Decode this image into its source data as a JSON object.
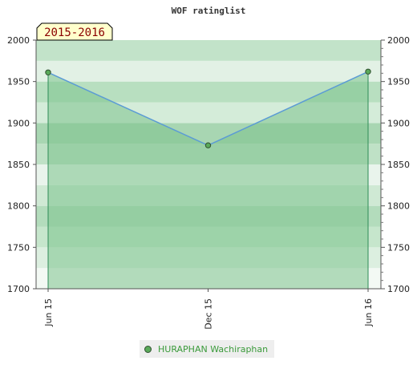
{
  "chart_data": {
    "type": "line",
    "title": "WOF ratinglist",
    "period_label": "2015-2016",
    "categories": [
      "Jun 15",
      "Dec 15",
      "Jun 16"
    ],
    "ylim": [
      1700,
      2000
    ],
    "yticks": [
      "1700",
      "1750",
      "1800",
      "1850",
      "1900",
      "1950",
      "2000"
    ],
    "series": [
      {
        "name": "HURAPHAN Wachiraphan",
        "values": [
          1961,
          1873,
          1962
        ]
      }
    ],
    "legend_position": "bottom",
    "grid": true,
    "colors": {
      "line": "#5b9bd5",
      "fill": "#7cc38c",
      "marker": "#5aaa5a",
      "drop_line": "#2e8b57",
      "legend_text": "#3a9a3a"
    }
  }
}
